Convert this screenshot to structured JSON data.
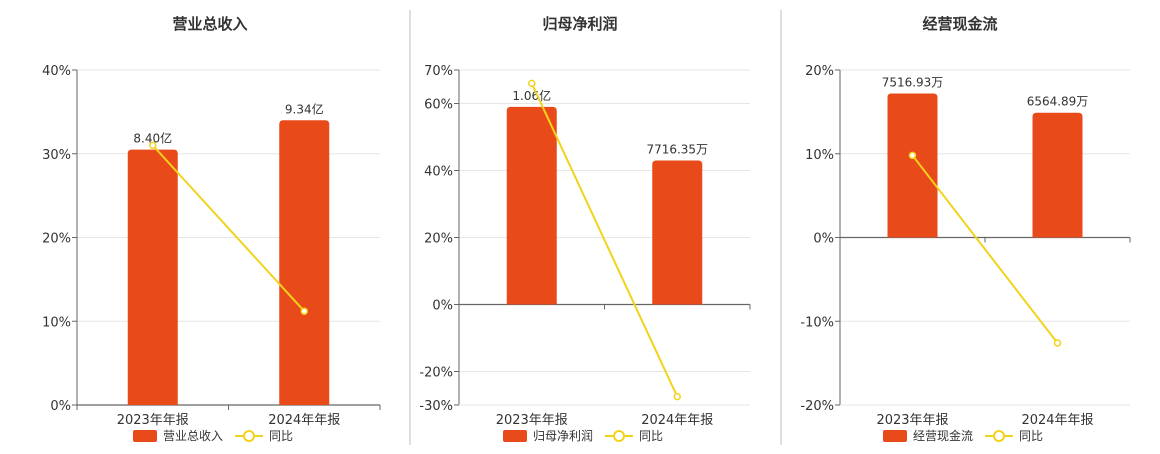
{
  "chart_data": [
    {
      "type": "bar",
      "title": "营业总收入",
      "categories": [
        "2023年年报",
        "2024年年报"
      ],
      "bar_labels": [
        "8.40亿",
        "9.34亿"
      ],
      "bar_values_pct_axis": [
        30.5,
        34.0
      ],
      "yoy_pct": [
        31.0,
        11.2
      ],
      "ylim": [
        0,
        40
      ],
      "yticks": [
        0,
        10,
        20,
        30,
        40
      ],
      "ytick_labels": [
        "0%",
        "10%",
        "20%",
        "30%",
        "40%"
      ],
      "legend": [
        "营业总收入",
        "同比"
      ],
      "legend_position": "bottom",
      "grid": true
    },
    {
      "type": "bar",
      "title": "归母净利润",
      "categories": [
        "2023年年报",
        "2024年年报"
      ],
      "bar_labels": [
        "1.06亿",
        "7716.35万"
      ],
      "bar_values_pct_axis": [
        59,
        43
      ],
      "yoy_pct": [
        66,
        -27.5
      ],
      "ylim": [
        -30,
        70
      ],
      "yticks": [
        -30,
        -20,
        0,
        20,
        40,
        60,
        70
      ],
      "ytick_labels": [
        "-30%",
        "-20%",
        "0%",
        "20%",
        "40%",
        "60%",
        "70%"
      ],
      "legend": [
        "归母净利润",
        "同比"
      ],
      "legend_position": "bottom",
      "grid": true
    },
    {
      "type": "bar",
      "title": "经营现金流",
      "categories": [
        "2023年年报",
        "2024年年报"
      ],
      "bar_labels": [
        "7516.93万",
        "6564.89万"
      ],
      "bar_values_pct_axis": [
        17.2,
        14.9
      ],
      "yoy_pct": [
        9.8,
        -12.6
      ],
      "ylim": [
        -20,
        20
      ],
      "yticks": [
        -20,
        -10,
        0,
        10,
        20
      ],
      "ytick_labels": [
        "-20%",
        "-10%",
        "0%",
        "10%",
        "20%"
      ],
      "legend": [
        "经营现金流",
        "同比"
      ],
      "legend_position": "bottom",
      "grid": true
    }
  ],
  "colors": {
    "bar": "#e84a1a",
    "line": "#f2d31b",
    "grid": "#e6e6e6",
    "axis": "#666666",
    "divider": "#bdbdbd",
    "text": "#333333"
  }
}
